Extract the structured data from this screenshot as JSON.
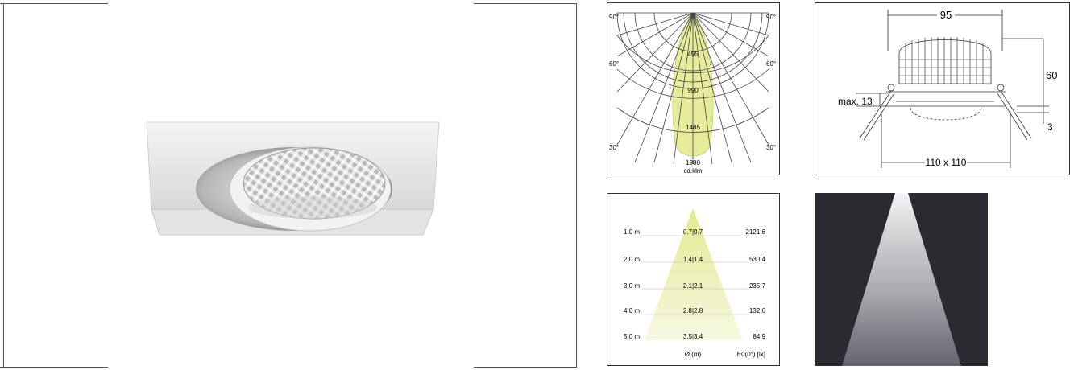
{
  "polar": {
    "angles_left": [
      "90°",
      "60°",
      "30°"
    ],
    "angles_right": [
      "90°",
      "60°",
      "30°"
    ],
    "rings": [
      "495",
      "990",
      "1485",
      "1980"
    ],
    "unit": "cd.klm"
  },
  "dimensions": {
    "width_top": "95",
    "height_right": "60",
    "max_depth": "max. 13",
    "bezel": "3",
    "cutout": "110 x 110"
  },
  "illuminance": {
    "rows": [
      {
        "distance": "1.0 m",
        "diameter": "0.7|0.7",
        "lux": "2121.6"
      },
      {
        "distance": "2.0 m",
        "diameter": "1.4|1.4",
        "lux": "530.4"
      },
      {
        "distance": "3.0 m",
        "diameter": "2.1|2.1",
        "lux": "235.7"
      },
      {
        "distance": "4.0 m",
        "diameter": "2.8|2.8",
        "lux": "132.6"
      },
      {
        "distance": "5.0 m",
        "diameter": "3.5|3.4",
        "lux": "84.9"
      }
    ],
    "col_diameter": "Ø (m)",
    "col_lux": "E0(0°) [lx]"
  },
  "colors": {
    "beam_yellow": "#e6ec9a",
    "beam_panel_bg": "#2a2a30",
    "frame": "#333333"
  }
}
